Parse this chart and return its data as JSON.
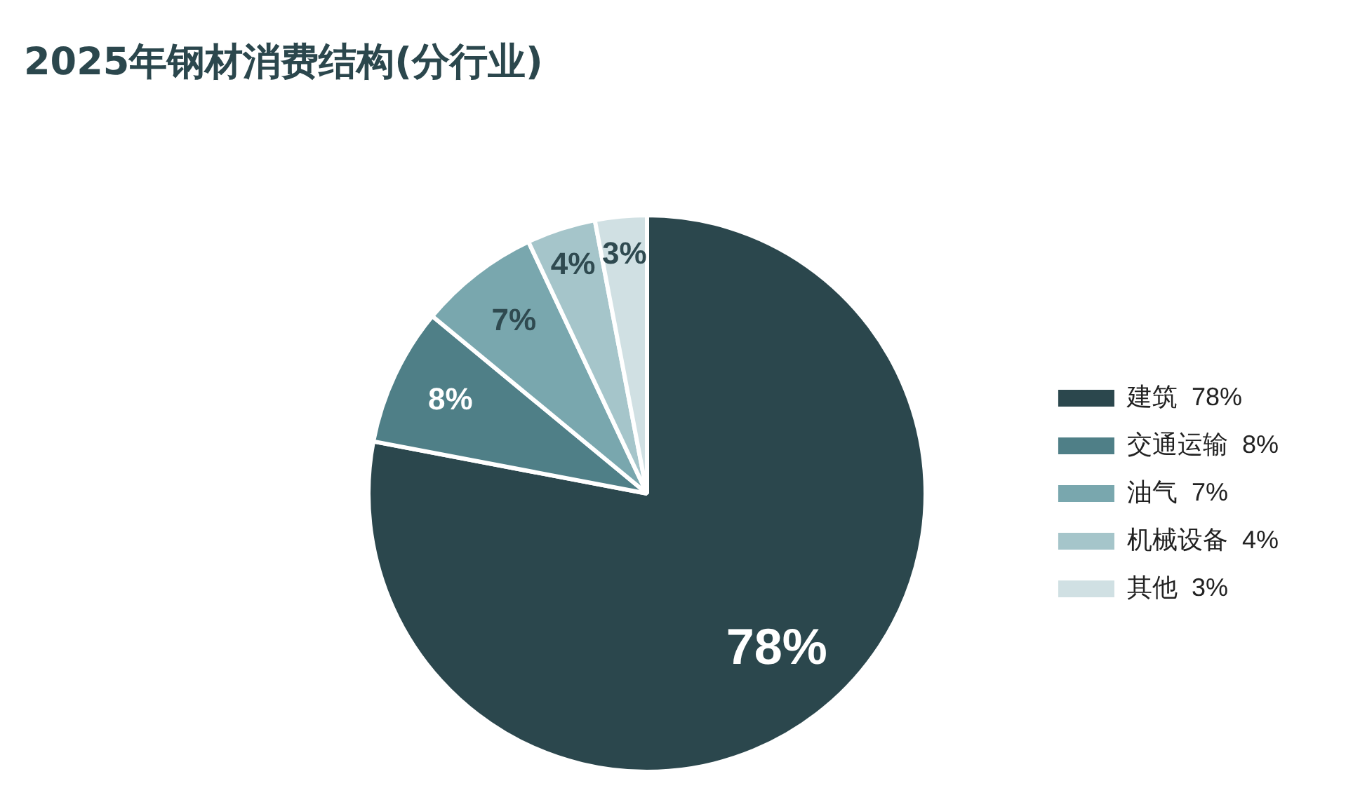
{
  "chart_data": {
    "type": "pie",
    "title": "2025年钢材消费结构(分行业)",
    "categories": [
      "建筑",
      "交通运输",
      "油气",
      "机械设备",
      "其他"
    ],
    "values": [
      78,
      8,
      7,
      4,
      3
    ],
    "colors": [
      "#2b474d",
      "#4f7f87",
      "#79a7ae",
      "#a5c5ca",
      "#d0e0e3"
    ],
    "value_labels": [
      "78%",
      "8%",
      "7%",
      "4%",
      "3%"
    ],
    "legend": "right"
  }
}
